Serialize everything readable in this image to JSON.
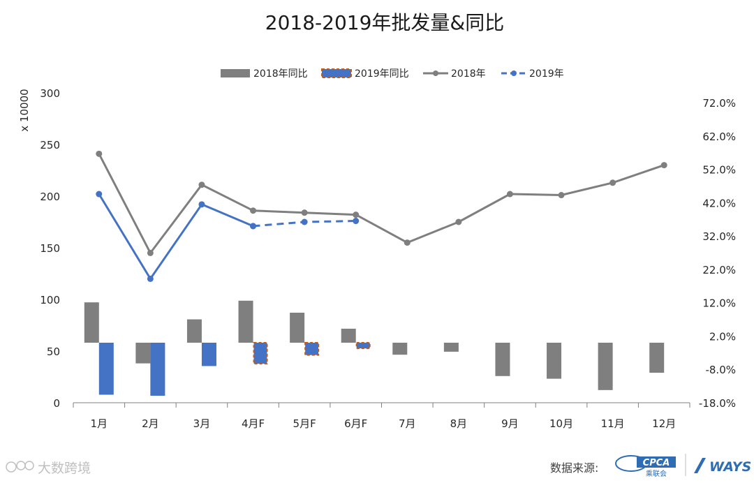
{
  "chart_data": {
    "title": "2018-2019年批发量&同比",
    "ylabel": "x 10000",
    "categories": [
      "1月",
      "2月",
      "3月",
      "4月F",
      "5月F",
      "6月F",
      "7月",
      "8月",
      "9月",
      "10月",
      "11月",
      "12月"
    ],
    "ylim": [
      0,
      300
    ],
    "yticks": [
      0,
      50,
      100,
      150,
      200,
      250,
      300
    ],
    "y2lim": [
      -18,
      72
    ],
    "y2ticks": [
      "-18.0%",
      "-8.0%",
      "2.0%",
      "12.0%",
      "22.0%",
      "32.0%",
      "42.0%",
      "52.0%",
      "62.0%",
      "72.0%"
    ],
    "legend_position": "top-center",
    "grid": false,
    "series": [
      {
        "name": "2018年同比",
        "type": "bar",
        "axis": "right",
        "color": "#7f7f7f",
        "style": "solid",
        "values": [
          12.1,
          -6.2,
          7.0,
          12.6,
          9.0,
          4.2,
          -3.6,
          -2.7,
          -10.0,
          -10.8,
          -14.2,
          -9.0
        ]
      },
      {
        "name": "2019年同比",
        "type": "bar",
        "axis": "right",
        "color": "#4472c4",
        "style": "solid",
        "values": [
          -15.6,
          -15.9,
          -7.0,
          null,
          null,
          null,
          null,
          null,
          null,
          null,
          null,
          null
        ]
      },
      {
        "name": "2019年同比",
        "type": "bar",
        "axis": "right",
        "color": "#4472c4",
        "border": "#c55a11",
        "style": "dashed-border",
        "legend": false,
        "values": [
          null,
          null,
          null,
          -6.3,
          -3.7,
          -1.7,
          null,
          null,
          null,
          null,
          null,
          null
        ]
      },
      {
        "name": "2018年",
        "type": "line",
        "axis": "left",
        "color": "#7f7f7f",
        "style": "solid",
        "values": [
          241,
          145,
          211,
          186,
          184,
          182,
          155,
          175,
          202,
          201,
          213,
          230
        ]
      },
      {
        "name": "2019年",
        "type": "line",
        "axis": "left",
        "color": "#4472c4",
        "style": "solid",
        "values": [
          202,
          120,
          192,
          171,
          null,
          null,
          null,
          null,
          null,
          null,
          null,
          null
        ]
      },
      {
        "name": "2019年",
        "type": "line",
        "axis": "left",
        "color": "#4472c4",
        "style": "dashed",
        "legend": false,
        "values": [
          null,
          null,
          null,
          171,
          175,
          176,
          null,
          null,
          null,
          null,
          null,
          null
        ]
      }
    ],
    "legend": [
      {
        "label": "2018年同比",
        "kind": "bar",
        "color": "#7f7f7f"
      },
      {
        "label": "2019年同比",
        "kind": "bar-dashed",
        "color": "#4472c4",
        "border": "#c55a11"
      },
      {
        "label": "2018年",
        "kind": "line",
        "color": "#7f7f7f"
      },
      {
        "label": "2019年",
        "kind": "line-dashed",
        "color": "#4472c4"
      }
    ]
  },
  "footer": {
    "watermark": "大数跨境",
    "source_label": "数据来源:",
    "cpca_logo": "CPCA",
    "cpca_sub": "乘联会",
    "ways_logo": "WAYS"
  }
}
